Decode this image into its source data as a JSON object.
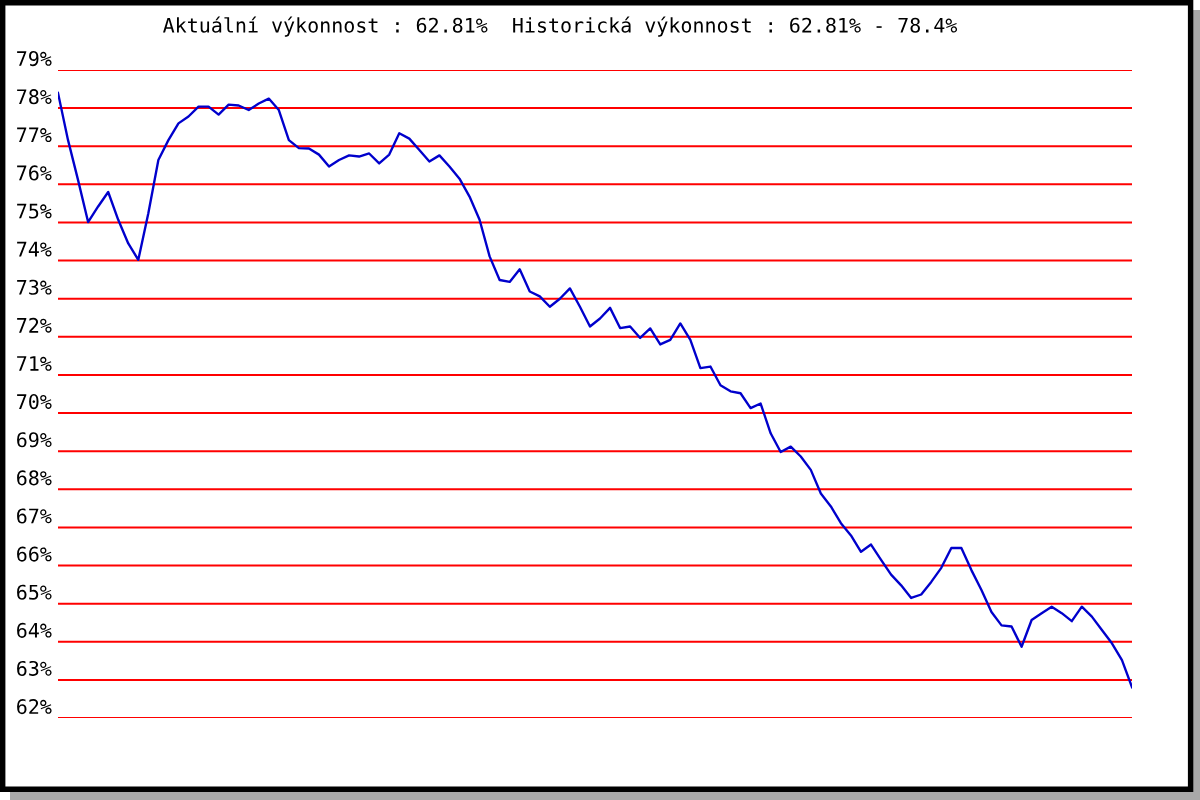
{
  "chart_data": {
    "type": "line",
    "title": "Aktuální výkonnost : 62.81%  Historická výkonnost : 62.81% - 78.4%",
    "categories": [
      null,
      null,
      null,
      null,
      null,
      null,
      null,
      null,
      null,
      null,
      null,
      null,
      null,
      null,
      null,
      null,
      null,
      null,
      null,
      null,
      null,
      null,
      null,
      null,
      null,
      null,
      null,
      null,
      null,
      null,
      null,
      null,
      null,
      null,
      null,
      null,
      null,
      null,
      null,
      null,
      null,
      null,
      null,
      null,
      null,
      null,
      null,
      null,
      null,
      null,
      null,
      null,
      null,
      null,
      null,
      null,
      null,
      null,
      null,
      null,
      null,
      null,
      null,
      null,
      null,
      null,
      null,
      null,
      null,
      null,
      null,
      null,
      null,
      null,
      null,
      null,
      null,
      null,
      null,
      null,
      null,
      null,
      null,
      null,
      null,
      null,
      null,
      null,
      null,
      null,
      null,
      null,
      null,
      null,
      null,
      null,
      null,
      null,
      null,
      null,
      null,
      null,
      null,
      null,
      null,
      null,
      null,
      null
    ],
    "series": [
      {
        "color": "#0000cc",
        "values": [
          78.4,
          77.16,
          76.11,
          75.01,
          75.42,
          75.8,
          75.07,
          74.45,
          74.02,
          75.24,
          76.64,
          77.16,
          77.6,
          77.78,
          78.04,
          78.04,
          77.83,
          78.09,
          78.07,
          77.95,
          78.12,
          78.25,
          77.95,
          77.16,
          76.95,
          76.94,
          76.78,
          76.47,
          76.64,
          76.76,
          76.73,
          76.81,
          76.55,
          76.78,
          77.34,
          77.2,
          76.9,
          76.6,
          76.76,
          76.47,
          76.15,
          75.68,
          75.07,
          74.11,
          73.49,
          73.44,
          73.77,
          73.19,
          73.06,
          72.79,
          73.0,
          73.27,
          72.79,
          72.27,
          72.48,
          72.76,
          72.23,
          72.27,
          71.97,
          72.22,
          71.8,
          71.92,
          72.35,
          71.92,
          71.18,
          71.22,
          70.73,
          70.57,
          70.52,
          70.13,
          70.25,
          69.47,
          68.98,
          69.12,
          68.86,
          68.51,
          67.89,
          67.55,
          67.11,
          66.79,
          66.36,
          66.55,
          66.15,
          65.76,
          65.48,
          65.15,
          65.24,
          65.57,
          65.94,
          66.46,
          66.46,
          65.88,
          65.36,
          64.78,
          64.43,
          64.4,
          63.87,
          64.57,
          64.75,
          64.92,
          64.75,
          64.54,
          64.92,
          64.66,
          64.31,
          63.96,
          63.52,
          62.81
        ]
      }
    ],
    "ylim": [
      62,
      79
    ],
    "yticks": [
      {
        "value": 62,
        "label": "62%"
      },
      {
        "value": 63,
        "label": "63%"
      },
      {
        "value": 64,
        "label": "64%"
      },
      {
        "value": 65,
        "label": "65%"
      },
      {
        "value": 66,
        "label": "66%"
      },
      {
        "value": 67,
        "label": "67%"
      },
      {
        "value": 68,
        "label": "68%"
      },
      {
        "value": 69,
        "label": "69%"
      },
      {
        "value": 70,
        "label": "70%"
      },
      {
        "value": 71,
        "label": "71%"
      },
      {
        "value": 72,
        "label": "72%"
      },
      {
        "value": 73,
        "label": "73%"
      },
      {
        "value": 74,
        "label": "74%"
      },
      {
        "value": 75,
        "label": "75%"
      },
      {
        "value": 76,
        "label": "76%"
      },
      {
        "value": 77,
        "label": "77%"
      },
      {
        "value": 78,
        "label": "78%"
      },
      {
        "value": 79,
        "label": "79%"
      }
    ],
    "grid": "y",
    "tick_labels": "y"
  }
}
